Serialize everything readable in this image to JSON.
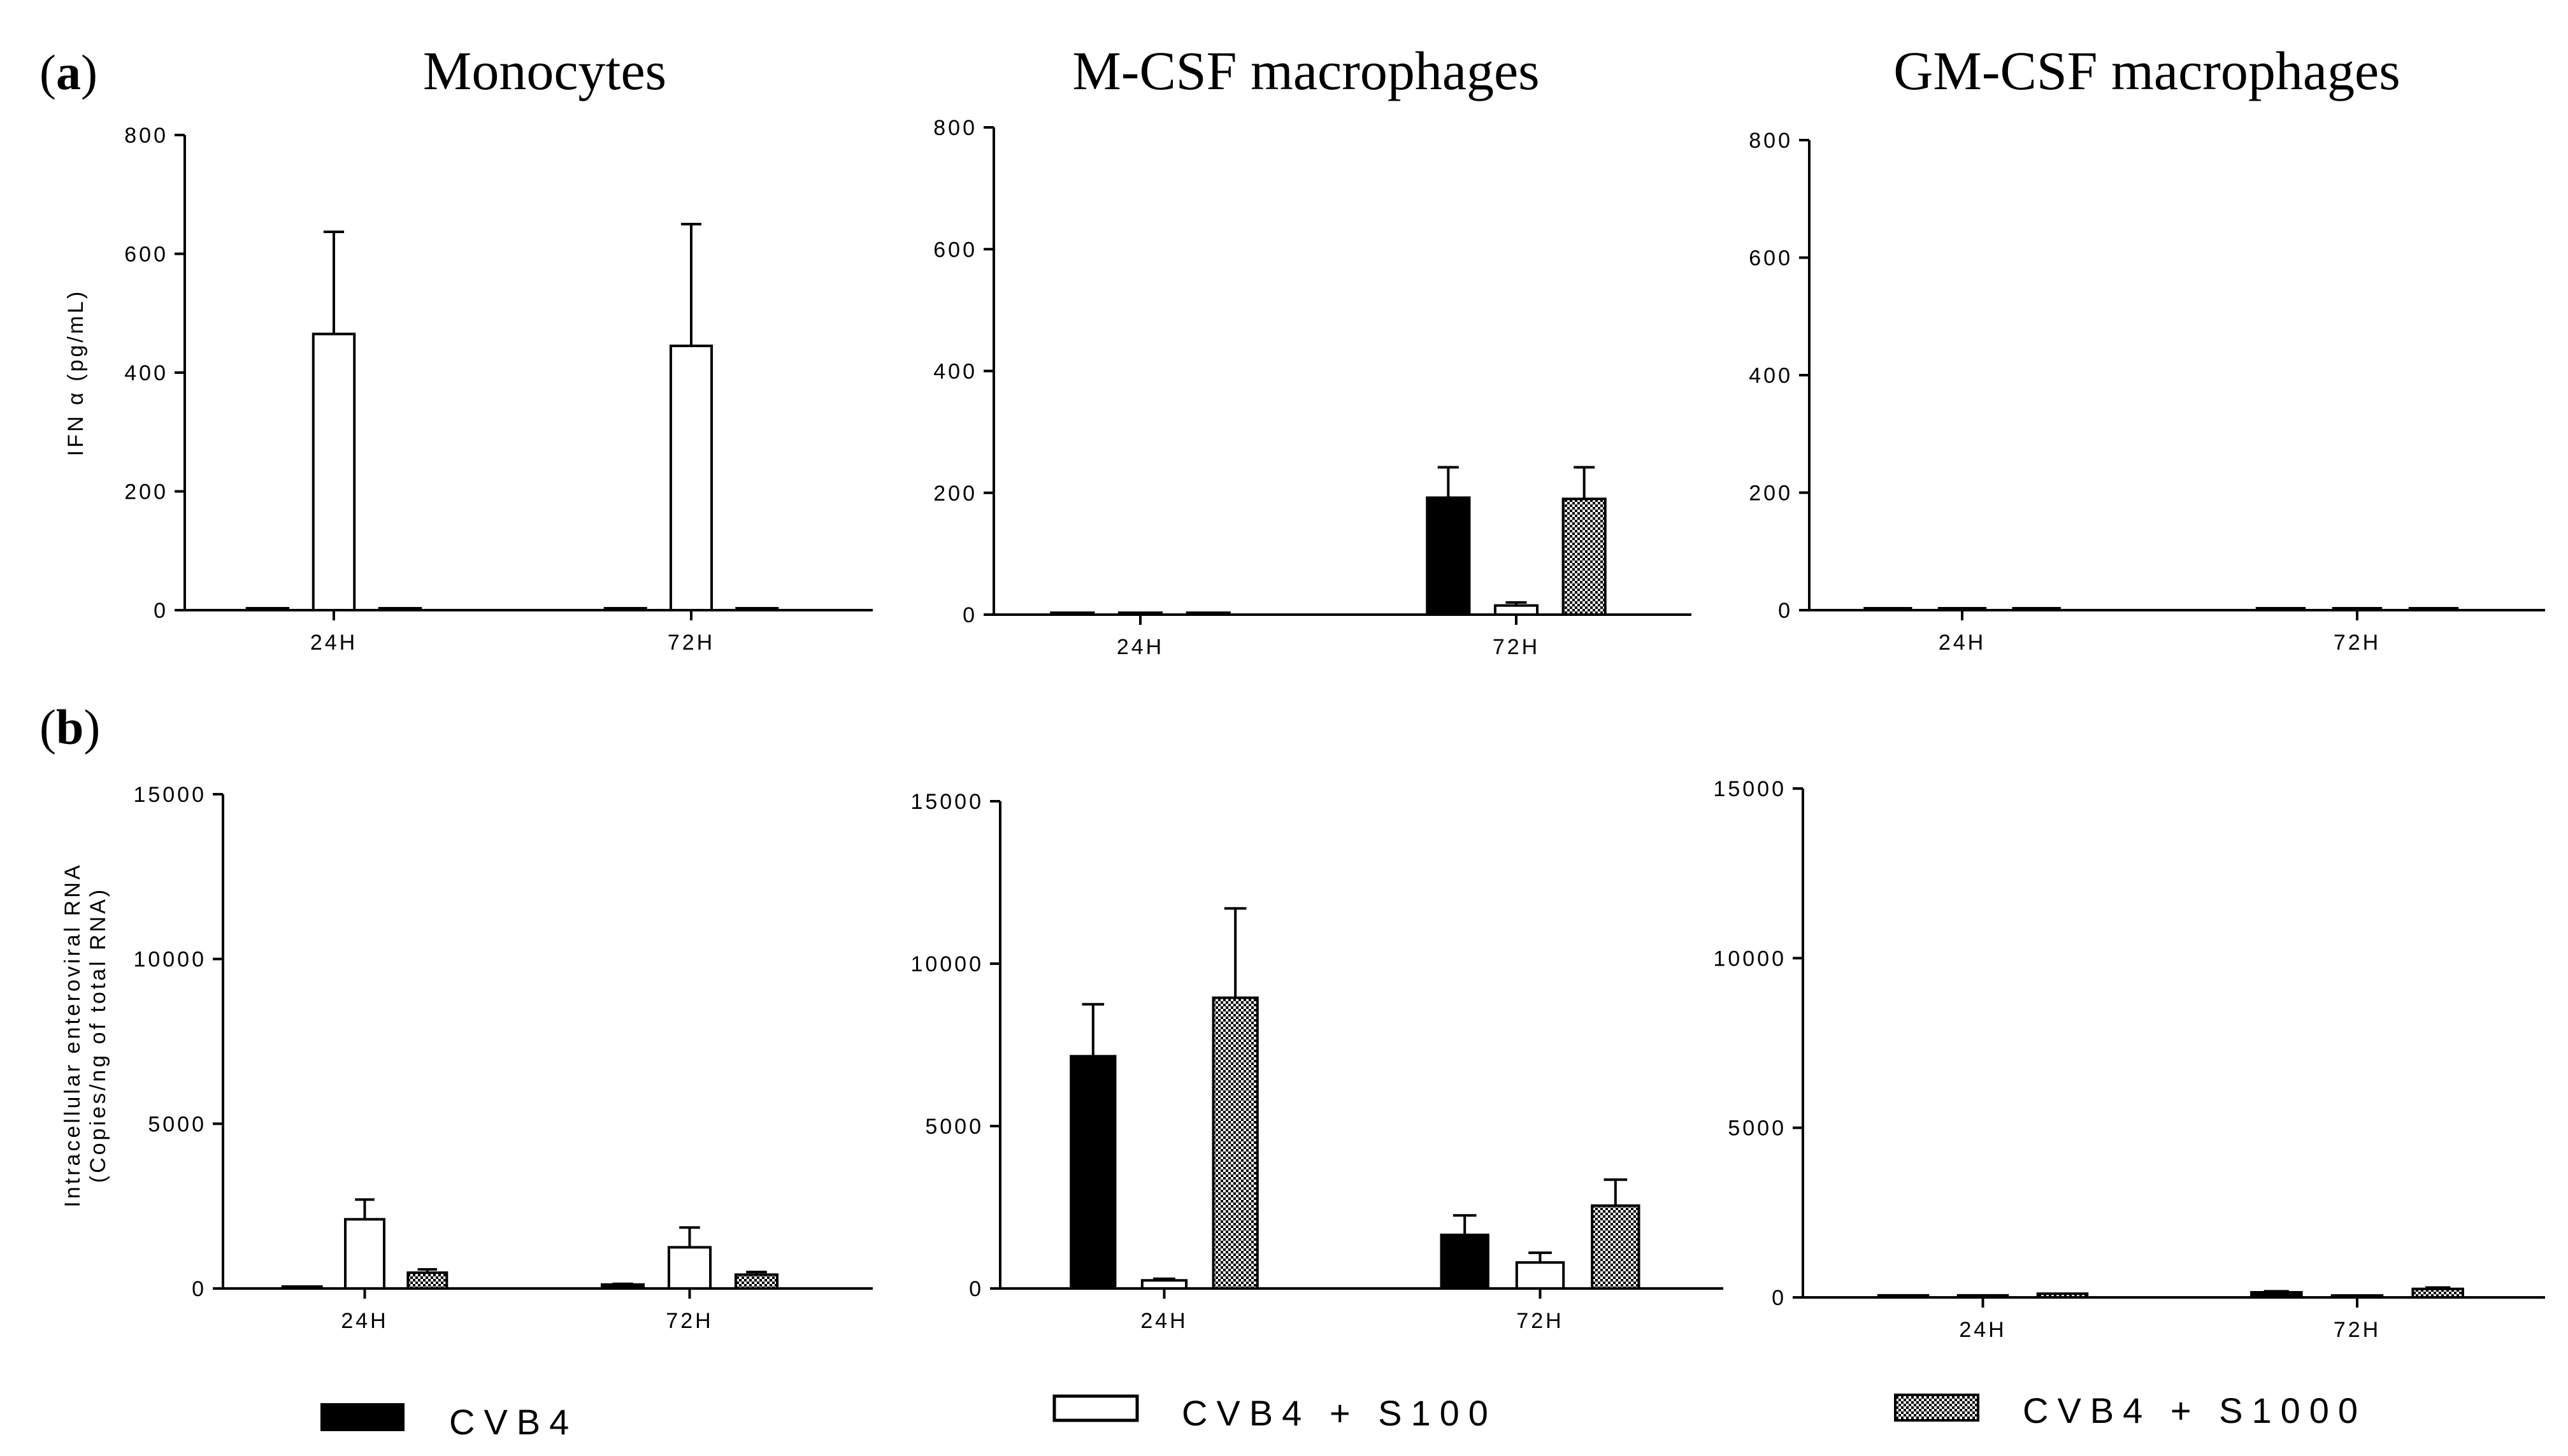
{
  "column_titles": [
    "Monocytes",
    "M-CSF macrophages",
    "GM-CSF macrophages"
  ],
  "panel_labels": {
    "a": {
      "open": "(",
      "letter": "a",
      "close": ")"
    },
    "b": {
      "open": "(",
      "letter": "b",
      "close": ")"
    }
  },
  "legend": {
    "items": [
      {
        "label": "CVB4",
        "fill": "black"
      },
      {
        "label": "CVB4 + S100",
        "fill": "white"
      },
      {
        "label": "CVB4 + S1000",
        "fill": "checker"
      }
    ]
  },
  "colors": {
    "axis": "#000000",
    "bar_solid": "#000000",
    "bar_open": "#ffffff",
    "background": "#ffffff"
  },
  "chart_data": [
    {
      "id": "a-monocytes",
      "type": "bar",
      "title": "Monocytes",
      "xlabel": "",
      "ylabel": "IFN α (pg/mL)",
      "ylim": [
        0,
        800
      ],
      "yticks": [
        0,
        200,
        400,
        600,
        800
      ],
      "ytick_labels": [
        "0",
        "200",
        "400",
        "600",
        "800"
      ],
      "categories": [
        "24H",
        "72H"
      ],
      "series": [
        {
          "name": "CVB4",
          "values": [
            3,
            3
          ],
          "errors": [
            0,
            0
          ]
        },
        {
          "name": "CVB4 + S100",
          "values": [
            465,
            445
          ],
          "errors": [
            172,
            205
          ]
        },
        {
          "name": "CVB4 + S1000",
          "values": [
            3,
            3
          ],
          "errors": [
            0,
            0
          ]
        }
      ]
    },
    {
      "id": "a-mcsf",
      "type": "bar",
      "title": "M-CSF macrophages",
      "xlabel": "",
      "ylabel": "",
      "ylim": [
        0,
        800
      ],
      "yticks": [
        0,
        200,
        400,
        600,
        800
      ],
      "ytick_labels": [
        "0",
        "200",
        "400",
        "600",
        "800"
      ],
      "categories": [
        "24H",
        "72H"
      ],
      "series": [
        {
          "name": "CVB4",
          "values": [
            3,
            192
          ],
          "errors": [
            0,
            50
          ]
        },
        {
          "name": "CVB4 + S100",
          "values": [
            3,
            15
          ],
          "errors": [
            0,
            5
          ]
        },
        {
          "name": "CVB4 + S1000",
          "values": [
            3,
            190
          ],
          "errors": [
            0,
            52
          ]
        }
      ]
    },
    {
      "id": "a-gmcsf",
      "type": "bar",
      "title": "GM-CSF macrophages",
      "xlabel": "",
      "ylabel": "",
      "ylim": [
        0,
        800
      ],
      "yticks": [
        0,
        200,
        400,
        600,
        800
      ],
      "ytick_labels": [
        "0",
        "200",
        "400",
        "600",
        "800"
      ],
      "categories": [
        "24H",
        "72H"
      ],
      "series": [
        {
          "name": "CVB4",
          "values": [
            3,
            3
          ],
          "errors": [
            0,
            0
          ]
        },
        {
          "name": "CVB4 + S100",
          "values": [
            3,
            3
          ],
          "errors": [
            0,
            0
          ]
        },
        {
          "name": "CVB4 + S1000",
          "values": [
            3,
            3
          ],
          "errors": [
            0,
            0
          ]
        }
      ]
    },
    {
      "id": "b-monocytes",
      "type": "bar",
      "title": "",
      "xlabel": "",
      "ylabel": "Intracellular enteroviral RNA",
      "ylabel2": "(Copies/ng of total RNA)",
      "ylim": [
        0,
        15000
      ],
      "yticks": [
        0,
        5000,
        10000,
        15000
      ],
      "ytick_labels": [
        "0",
        "5000",
        "10000",
        "15000"
      ],
      "categories": [
        "24H",
        "72H"
      ],
      "series": [
        {
          "name": "CVB4",
          "values": [
            30,
            120
          ],
          "errors": [
            0,
            20
          ]
        },
        {
          "name": "CVB4 + S100",
          "values": [
            2100,
            1250
          ],
          "errors": [
            600,
            600
          ]
        },
        {
          "name": "CVB4 + S1000",
          "values": [
            480,
            420
          ],
          "errors": [
            100,
            80
          ]
        }
      ]
    },
    {
      "id": "b-mcsf",
      "type": "bar",
      "title": "",
      "xlabel": "",
      "ylabel": "",
      "ylim": [
        0,
        15000
      ],
      "yticks": [
        0,
        5000,
        10000,
        15000
      ],
      "ytick_labels": [
        "0",
        "5000",
        "10000",
        "15000"
      ],
      "categories": [
        "24H",
        "72H"
      ],
      "series": [
        {
          "name": "CVB4",
          "values": [
            7150,
            1650
          ],
          "errors": [
            1600,
            600
          ]
        },
        {
          "name": "CVB4 + S100",
          "values": [
            250,
            800
          ],
          "errors": [
            50,
            300
          ]
        },
        {
          "name": "CVB4 + S1000",
          "values": [
            8950,
            2550
          ],
          "errors": [
            2750,
            800
          ]
        }
      ]
    },
    {
      "id": "b-gmcsf",
      "type": "bar",
      "title": "",
      "xlabel": "",
      "ylabel": "",
      "ylim": [
        0,
        15000
      ],
      "yticks": [
        0,
        5000,
        10000,
        15000
      ],
      "ytick_labels": [
        "0",
        "5000",
        "10000",
        "15000"
      ],
      "categories": [
        "24H",
        "72H"
      ],
      "series": [
        {
          "name": "CVB4",
          "values": [
            60,
            150
          ],
          "errors": [
            0,
            30
          ]
        },
        {
          "name": "CVB4 + S100",
          "values": [
            60,
            40
          ],
          "errors": [
            0,
            0
          ]
        },
        {
          "name": "CVB4 + S1000",
          "values": [
            110,
            250
          ],
          "errors": [
            0,
            40
          ]
        }
      ]
    }
  ]
}
